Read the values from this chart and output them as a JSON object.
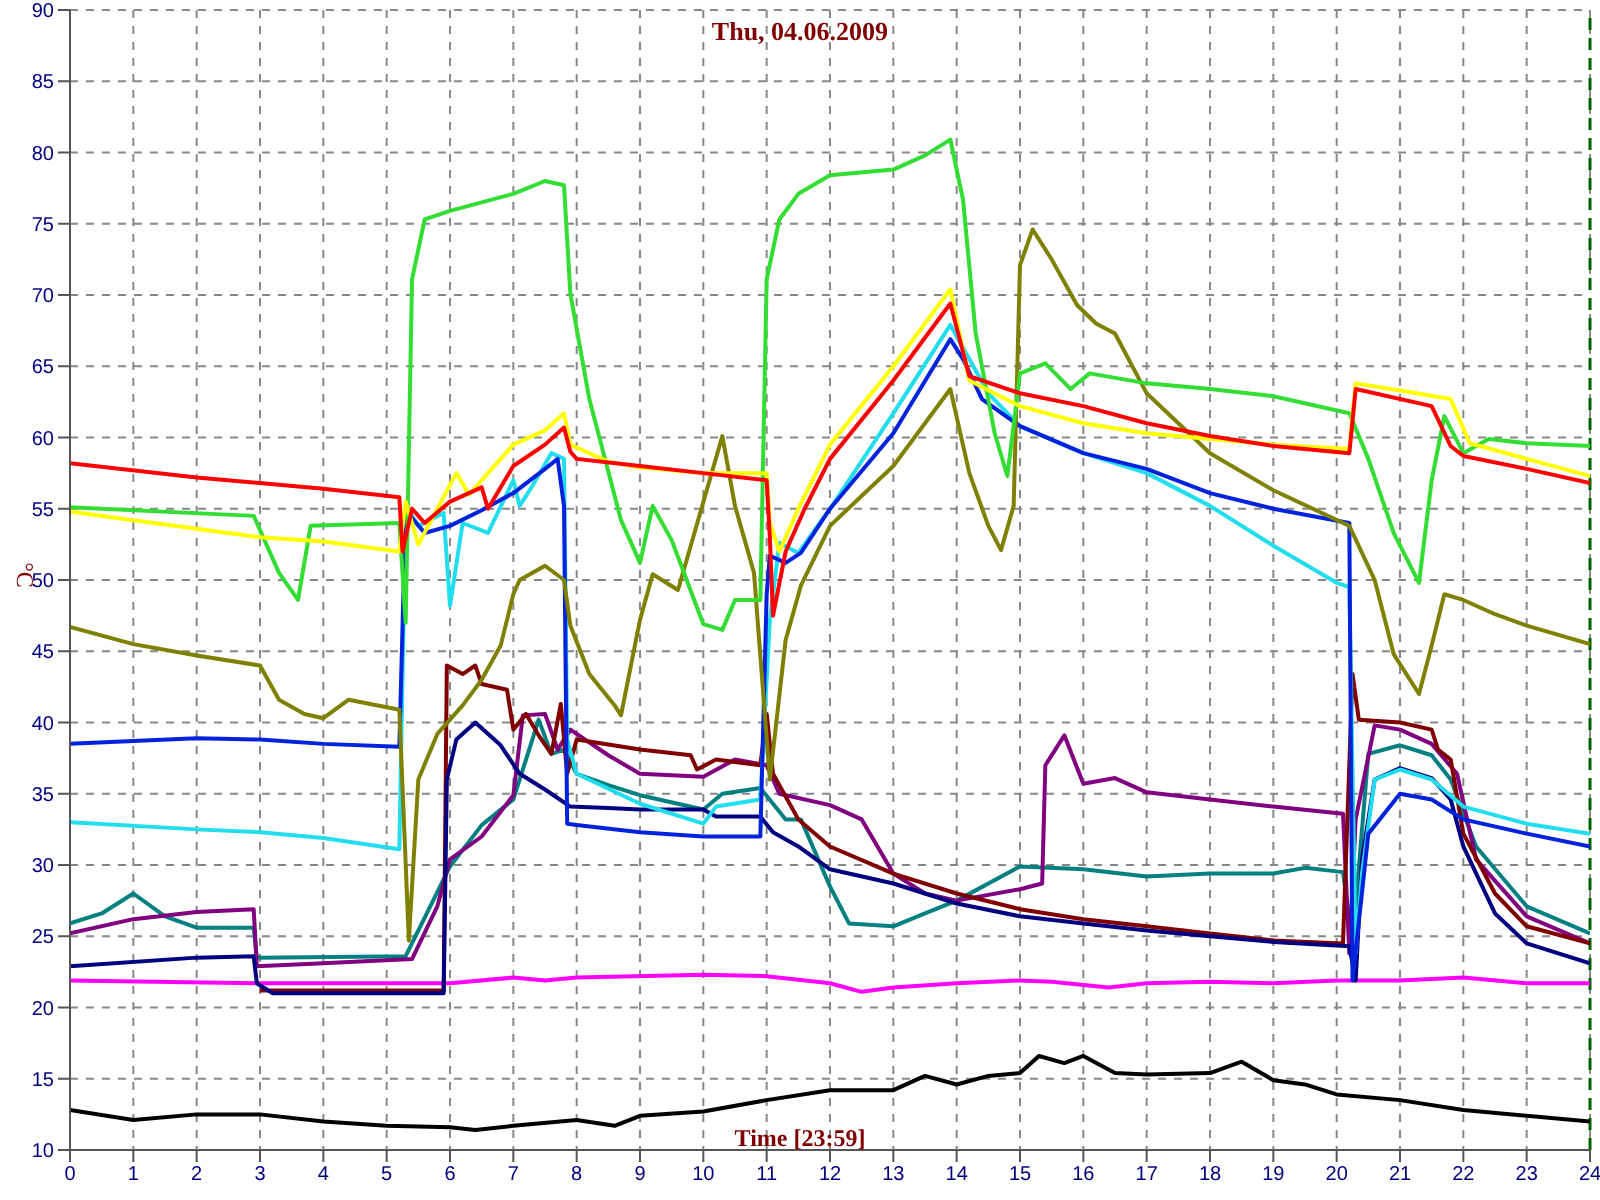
{
  "chart_data": {
    "type": "line",
    "title": "Thu, 04.06.2009",
    "xlabel": "Time [23:59]",
    "ylabel": "°C",
    "xlim": [
      0,
      24
    ],
    "xticks": [
      0,
      1,
      2,
      3,
      4,
      5,
      6,
      7,
      8,
      9,
      10,
      11,
      12,
      13,
      14,
      15,
      16,
      17,
      18,
      19,
      20,
      21,
      22,
      23,
      24
    ],
    "ylim": [
      10,
      90
    ],
    "yticks": [
      10,
      15,
      20,
      25,
      30,
      35,
      40,
      45,
      50,
      55,
      60,
      65,
      70,
      75,
      80,
      85,
      90
    ],
    "grid": true,
    "line_style": "solid",
    "ref_lines": [
      {
        "axis": "x",
        "value": 24,
        "color": "#006400",
        "line_style": "dashed"
      }
    ],
    "series": [
      {
        "color": "#000000",
        "x": [
          0,
          1,
          2,
          3,
          4,
          5,
          6,
          6.4,
          7,
          8,
          8.6,
          9,
          10,
          11,
          12,
          12.5,
          13,
          13.5,
          14,
          14.5,
          15,
          15.3,
          15.7,
          16,
          16.5,
          17,
          18,
          18.5,
          19,
          19.5,
          20,
          21,
          22,
          23,
          24
        ],
        "values": [
          12.8,
          12.1,
          12.5,
          12.5,
          12,
          11.7,
          11.6,
          11.4,
          11.7,
          12.1,
          11.7,
          12.4,
          12.7,
          13.5,
          14.2,
          14.2,
          14.2,
          15.2,
          14.6,
          15.2,
          15.4,
          16.6,
          16.1,
          16.6,
          15.4,
          15.3,
          15.4,
          16.2,
          14.9,
          14.6,
          13.9,
          13.5,
          12.8,
          12.4,
          12
        ]
      },
      {
        "color": "#ff00ff",
        "x": [
          0,
          3,
          6,
          7,
          7.5,
          8,
          10,
          11,
          12,
          12.5,
          13,
          14,
          15,
          15.5,
          16.4,
          17,
          18,
          19,
          20,
          21,
          22,
          23,
          24
        ],
        "values": [
          21.9,
          21.7,
          21.7,
          22.1,
          21.9,
          22.1,
          22.3,
          22.2,
          21.7,
          21.1,
          21.4,
          21.7,
          21.9,
          21.8,
          21.4,
          21.7,
          21.8,
          21.7,
          21.9,
          21.9,
          22.1,
          21.7,
          21.7
        ]
      },
      {
        "color": "#008080",
        "x": [
          0,
          0.5,
          1,
          1.5,
          2,
          2.9,
          2.95,
          5.3,
          6,
          6.5,
          7,
          7.4,
          7.6,
          7.8,
          8,
          8.5,
          9,
          10,
          10.3,
          10.9,
          11.3,
          11.54,
          12,
          12.3,
          13,
          13.5,
          14,
          15,
          16,
          17,
          18,
          19,
          19.5,
          20.1,
          20.25,
          20.5,
          21,
          21.5,
          21.8,
          22.2,
          23,
          24
        ],
        "values": [
          25.9,
          26.6,
          28,
          26.4,
          25.6,
          25.6,
          23.5,
          23.6,
          29.9,
          32.8,
          34.6,
          40.2,
          37.8,
          38.1,
          36.4,
          35.6,
          34.9,
          33.9,
          35,
          35.4,
          33.2,
          33.2,
          28.5,
          25.9,
          25.7,
          26.6,
          27.5,
          29.9,
          29.7,
          29.2,
          29.4,
          29.4,
          29.8,
          29.5,
          24.5,
          37.8,
          38.4,
          37.7,
          36,
          31.3,
          27.1,
          25.2
        ]
      },
      {
        "color": "#800080",
        "x": [
          0,
          1,
          2,
          2.9,
          2.95,
          4,
          5.4,
          5.8,
          6,
          6.5,
          7,
          7.15,
          7.5,
          7.7,
          7.9,
          8.5,
          9,
          10,
          10.5,
          11,
          11.2,
          12,
          12.5,
          13,
          13.5,
          14,
          15,
          15.35,
          15.4,
          15.7,
          16,
          16.5,
          17,
          18,
          19,
          20.1,
          20.2,
          20.3,
          20.6,
          21,
          21.5,
          21.9,
          22.2,
          23,
          24
        ],
        "values": [
          25.2,
          26.2,
          26.7,
          26.9,
          22.9,
          23.1,
          23.4,
          27.1,
          30.4,
          32,
          34.9,
          40.5,
          40.6,
          38.1,
          39.5,
          37.7,
          36.4,
          36.2,
          37.4,
          37,
          35,
          34.2,
          33.2,
          29.4,
          28,
          27.5,
          28.3,
          28.7,
          37,
          39.1,
          35.7,
          36.1,
          35.1,
          34.6,
          34.1,
          33.6,
          23.8,
          33.2,
          39.8,
          39.5,
          38.5,
          36.4,
          30.4,
          26.4,
          24.5
        ]
      },
      {
        "color": "#800000",
        "x": [
          3,
          5.9,
          5.95,
          6.2,
          6.4,
          6.5,
          6.9,
          7,
          7.2,
          7.4,
          7.6,
          7.75,
          7.85,
          8,
          9,
          9.8,
          9.9,
          10.2,
          10.9,
          11,
          11.1,
          11.5,
          12,
          13,
          14,
          15,
          16,
          17,
          18,
          19,
          20.1,
          20.25,
          20.35,
          21,
          21.5,
          21.6,
          21.8,
          22,
          22.5,
          23,
          24
        ],
        "values": [
          21.2,
          21.2,
          44,
          43.4,
          44,
          42.7,
          42.3,
          39.5,
          40.6,
          39.1,
          37.8,
          41.3,
          36.4,
          38.8,
          38.1,
          37.7,
          36.7,
          37.4,
          37,
          40.6,
          36.4,
          33.2,
          31.3,
          29.4,
          28,
          26.9,
          26.2,
          25.7,
          25.2,
          24.7,
          24.5,
          43.4,
          40.2,
          40,
          39.5,
          38.1,
          37.4,
          32.2,
          28,
          25.7,
          24.5
        ]
      },
      {
        "color": "#000080",
        "x": [
          0,
          2,
          2.9,
          2.95,
          3.2,
          5.9,
          5.95,
          6.1,
          6.4,
          6.8,
          7.1,
          7.5,
          7.9,
          8.5,
          9,
          10,
          10.2,
          10.9,
          11.1,
          11.5,
          12,
          13,
          14,
          15,
          16,
          17,
          18,
          19,
          20.2,
          20.3,
          20.4,
          20.6,
          21,
          21.5,
          21.8,
          22,
          22.5,
          23,
          24
        ],
        "values": [
          22.9,
          23.5,
          23.6,
          21.7,
          21,
          21,
          36,
          38.8,
          40,
          38.4,
          36.4,
          35.3,
          34.1,
          34,
          33.9,
          33.9,
          33.4,
          33.4,
          32.3,
          31.3,
          29.7,
          28.7,
          27.3,
          26.4,
          25.9,
          25.4,
          25,
          24.6,
          24.3,
          21.9,
          30.4,
          36,
          36.8,
          36.1,
          34.6,
          31.3,
          26.6,
          24.5,
          23.1
        ]
      },
      {
        "color": "#22ddee",
        "x": [
          0,
          2,
          3,
          4,
          5.2,
          5.3,
          5.5,
          5.9,
          6,
          6.2,
          6.6,
          7,
          7.1,
          7.3,
          7.6,
          7.8,
          7.85,
          8,
          9,
          10,
          10.2,
          10.9,
          11.05,
          11.2,
          11.5,
          12,
          13,
          13.9,
          14.5,
          15,
          16,
          17,
          18,
          19,
          20,
          20.2,
          20.3,
          20.4,
          20.6,
          21,
          21.5,
          22,
          23,
          24
        ],
        "values": [
          33,
          32.5,
          32.3,
          31.9,
          31.1,
          55.2,
          53.8,
          54.7,
          48.2,
          54,
          53.3,
          57,
          55.2,
          56.6,
          58.9,
          58.5,
          38.8,
          36.4,
          34.3,
          32.9,
          34.1,
          34.6,
          47.2,
          52.6,
          51.9,
          55,
          61.7,
          67.9,
          63.1,
          60.8,
          58.9,
          57.5,
          55.2,
          52.4,
          49.8,
          49.5,
          23.8,
          29.4,
          36,
          36.7,
          36,
          34.1,
          32.9,
          32.2
        ]
      },
      {
        "color": "#0022dd",
        "x": [
          0,
          2,
          3,
          4,
          5.2,
          5.3,
          5.6,
          6,
          6.5,
          7,
          7.5,
          7.7,
          7.8,
          7.85,
          8,
          9,
          10,
          10.9,
          11,
          11.05,
          11.3,
          11.54,
          12,
          13,
          13.9,
          14.1,
          14.4,
          15,
          16,
          17,
          18,
          19,
          20.2,
          20.25,
          20.5,
          21,
          21.5,
          22,
          23,
          24
        ],
        "values": [
          38.5,
          38.9,
          38.8,
          38.5,
          38.3,
          54.9,
          53.3,
          53.8,
          54.9,
          56.1,
          57.8,
          58.5,
          55.2,
          32.9,
          32.8,
          32.3,
          32,
          32,
          49,
          51.7,
          51.2,
          51.9,
          55,
          60.3,
          66.9,
          65.5,
          62.7,
          60.8,
          58.9,
          57.8,
          56.1,
          55,
          54,
          21.9,
          32.2,
          35,
          34.6,
          33.2,
          32.2,
          31.3
        ]
      },
      {
        "color": "#808000",
        "x": [
          0,
          1,
          2,
          3,
          3.3,
          3.7,
          4,
          4.4,
          5.2,
          5.35,
          5.5,
          5.8,
          6.2,
          6.5,
          6.8,
          7,
          7.1,
          7.5,
          7.8,
          7.9,
          8.2,
          8.6,
          8.7,
          9,
          9.2,
          9.6,
          10.3,
          10.5,
          10.8,
          11.05,
          11.3,
          11.54,
          12,
          13,
          13.9,
          14.2,
          14.5,
          14.7,
          14.9,
          15,
          15.2,
          15.5,
          15.9,
          16.2,
          16.5,
          17,
          18,
          19,
          20.2,
          20.6,
          20.9,
          21.3,
          21.5,
          21.7,
          22,
          22.5,
          23,
          24
        ],
        "values": [
          46.7,
          45.5,
          44.7,
          44,
          41.6,
          40.6,
          40.3,
          41.6,
          40.9,
          24.7,
          36,
          39.2,
          41.2,
          43,
          45.4,
          49,
          50,
          51,
          50,
          46.8,
          43.4,
          41.2,
          40.5,
          47.2,
          50.4,
          49.3,
          60.1,
          55.2,
          50.5,
          36,
          45.8,
          49.6,
          53.8,
          58,
          63.4,
          57.5,
          53.8,
          52.1,
          55.2,
          72.1,
          74.6,
          72.5,
          69.3,
          68,
          67.3,
          63.1,
          58.9,
          56.3,
          53.8,
          50,
          44.8,
          42,
          45.4,
          49,
          48.6,
          47.6,
          46.8,
          45.5
        ]
      },
      {
        "color": "#33dd33",
        "x": [
          0,
          2.9,
          3.3,
          3.6,
          3.8,
          5.2,
          5.3,
          5.4,
          5.6,
          6,
          7,
          7.5,
          7.8,
          7.9,
          8.2,
          8.7,
          9,
          9.2,
          9.5,
          10,
          10.3,
          10.5,
          10.9,
          11,
          11.2,
          11.5,
          12,
          13,
          13.5,
          13.9,
          14.1,
          14.3,
          14.6,
          14.8,
          15,
          15.4,
          15.8,
          16.1,
          17,
          18,
          19,
          20.2,
          20.5,
          20.9,
          21.3,
          21.5,
          21.7,
          22,
          22.4,
          23,
          24
        ],
        "values": [
          55.1,
          54.5,
          50.5,
          48.6,
          53.8,
          54,
          47,
          71.1,
          75.3,
          75.9,
          77.1,
          78,
          77.7,
          70.1,
          62.7,
          54.2,
          51.2,
          55.2,
          52.8,
          46.9,
          46.5,
          48.6,
          48.6,
          71.1,
          75.3,
          77.1,
          78.4,
          78.8,
          79.8,
          80.9,
          76.7,
          67.3,
          60.3,
          57.3,
          64.5,
          65.2,
          63.4,
          64.5,
          63.8,
          63.4,
          62.9,
          61.7,
          58.5,
          53.3,
          49.8,
          57,
          61.5,
          58.9,
          59.9,
          59.6,
          59.4
        ]
      },
      {
        "color": "#ffff00",
        "x": [
          0,
          1,
          2,
          3,
          4,
          5.2,
          5.3,
          5.5,
          5.8,
          6.1,
          6.3,
          7,
          7.5,
          7.8,
          7.9,
          8.5,
          9,
          10,
          11,
          11.05,
          11.2,
          11.5,
          12,
          13,
          13.9,
          14.2,
          15,
          16,
          17,
          18,
          19,
          20.2,
          20.3,
          21,
          21.8,
          22.1,
          23,
          24
        ],
        "values": [
          54.8,
          54.2,
          53.6,
          53,
          52.7,
          52,
          55.5,
          52.5,
          55,
          57.5,
          56,
          59.5,
          60.5,
          61.7,
          59.5,
          58.3,
          57.9,
          57.5,
          57.5,
          54,
          52,
          55,
          59.5,
          65,
          70.4,
          64,
          62.2,
          61,
          60.3,
          59.9,
          59.5,
          59.2,
          63.8,
          63.3,
          62.7,
          59.6,
          58.5,
          57.3
        ]
      },
      {
        "color": "#ff0000",
        "x": [
          0,
          2,
          4,
          5.2,
          5.25,
          5.4,
          5.6,
          6,
          6.5,
          6.6,
          7,
          7.5,
          7.8,
          7.9,
          8,
          9,
          10,
          11,
          11.05,
          11.1,
          11.3,
          11.6,
          12,
          13,
          13.9,
          14.2,
          15,
          16,
          17,
          18,
          19,
          20.2,
          20.3,
          21.5,
          21.8,
          22,
          23,
          24
        ],
        "values": [
          58.2,
          57.2,
          56.4,
          55.8,
          52,
          55,
          54,
          55.5,
          56.5,
          55,
          58,
          59.5,
          60.7,
          59,
          58.5,
          58,
          57.5,
          57,
          53,
          47.5,
          52,
          55,
          58.5,
          64,
          69.4,
          64.3,
          63.1,
          62.2,
          61,
          60.1,
          59.4,
          58.9,
          63.4,
          62.2,
          59.4,
          58.7,
          57.8,
          56.8
        ]
      }
    ]
  }
}
